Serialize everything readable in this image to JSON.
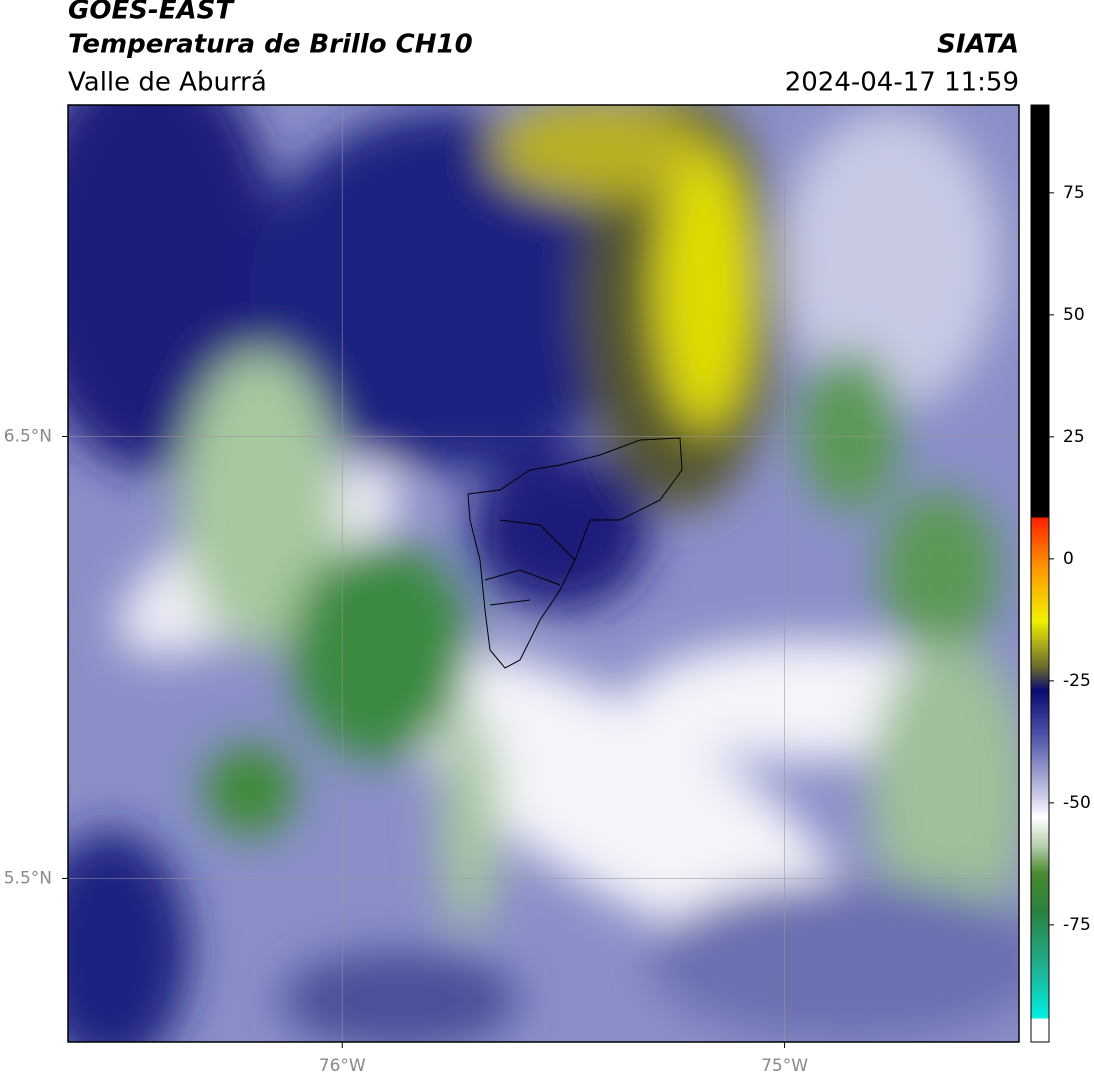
{
  "header": {
    "satellite": "GOES-EAST",
    "title": "Temperatura de Brillo CH10",
    "source": "SIATA",
    "region": "Valle de Aburrá",
    "datetime": "2024-04-17 11:59"
  },
  "map": {
    "xlim": [
      -76.62,
      -74.47
    ],
    "ylim": [
      5.13,
      7.25
    ],
    "xticks": [
      {
        "value": -76,
        "label": "76°W"
      },
      {
        "value": -75,
        "label": "75°W"
      }
    ],
    "yticks": [
      {
        "value": 6.5,
        "label": "6.5°N"
      },
      {
        "value": 5.5,
        "label": "5.5°N"
      }
    ]
  },
  "colorbar": {
    "range": [
      -99,
      93
    ],
    "ticks": [
      75,
      50,
      25,
      0,
      -25,
      -50,
      -75
    ]
  }
}
